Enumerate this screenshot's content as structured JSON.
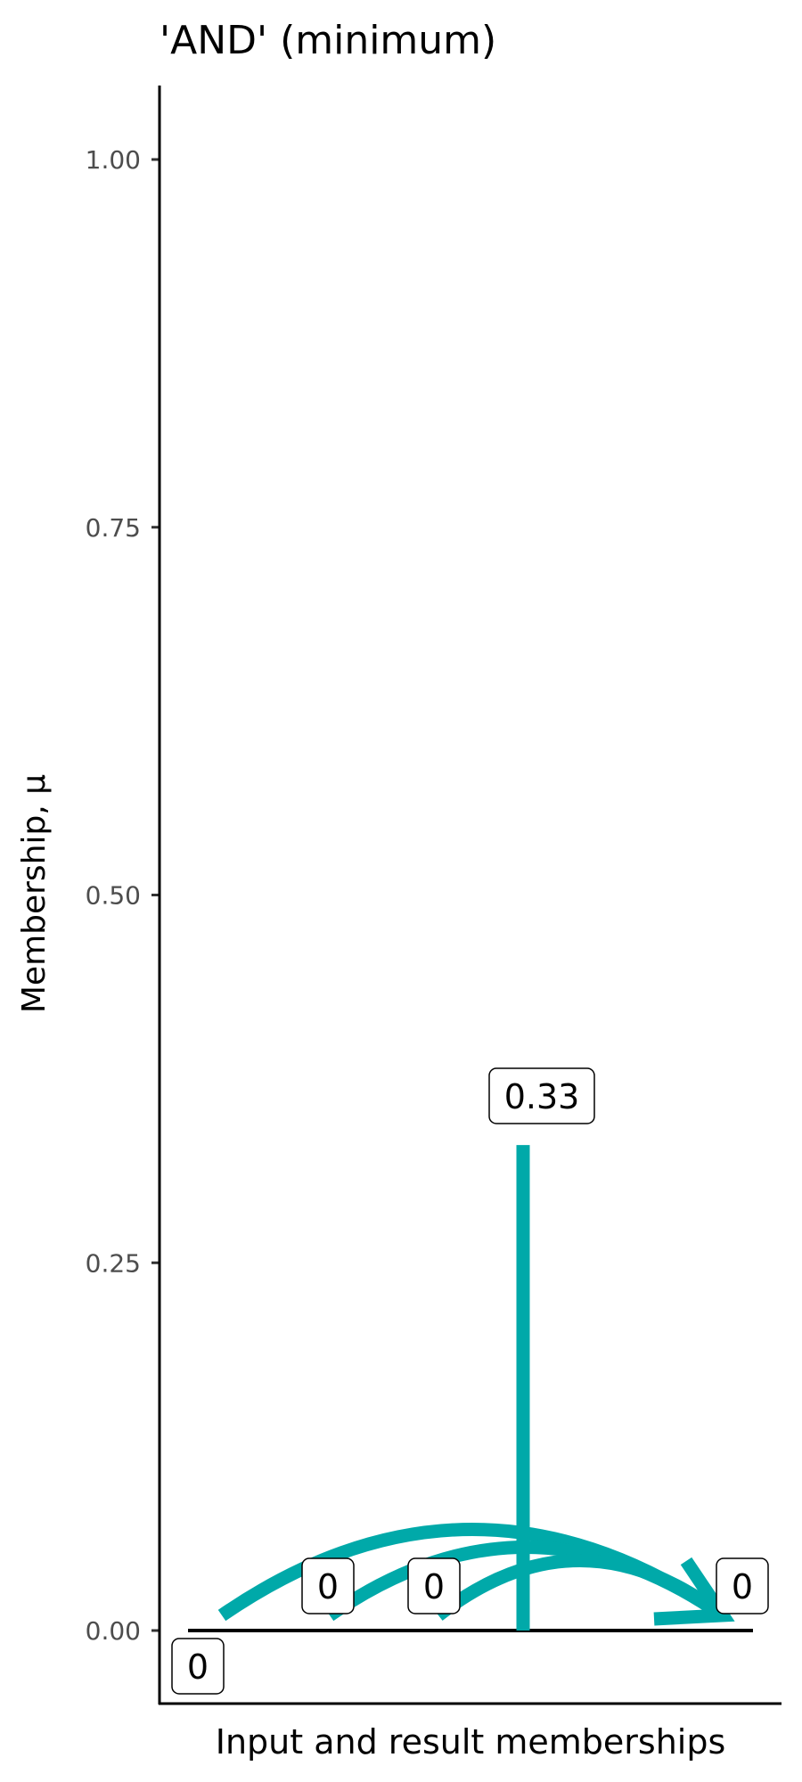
{
  "chart_data": {
    "type": "line",
    "title": "'AND' (minimum)",
    "xlabel": "Input and result memberships",
    "ylabel": "Membership, µ",
    "ylim": [
      -0.1,
      1.1
    ],
    "yticks": [
      "0.00",
      "0.25",
      "0.50",
      "0.75",
      "1.00"
    ],
    "ytick_values": [
      0,
      0.25,
      0.5,
      0.75,
      1.0
    ],
    "grid": false,
    "points": [
      {
        "label": "0",
        "value": 0
      },
      {
        "label": "0",
        "value": 0
      },
      {
        "label": "0",
        "value": 0
      },
      {
        "label": "0.33",
        "value": 0.33
      },
      {
        "label": "0",
        "value": 0
      }
    ],
    "result_label": "0",
    "color": "#00A9A9"
  }
}
